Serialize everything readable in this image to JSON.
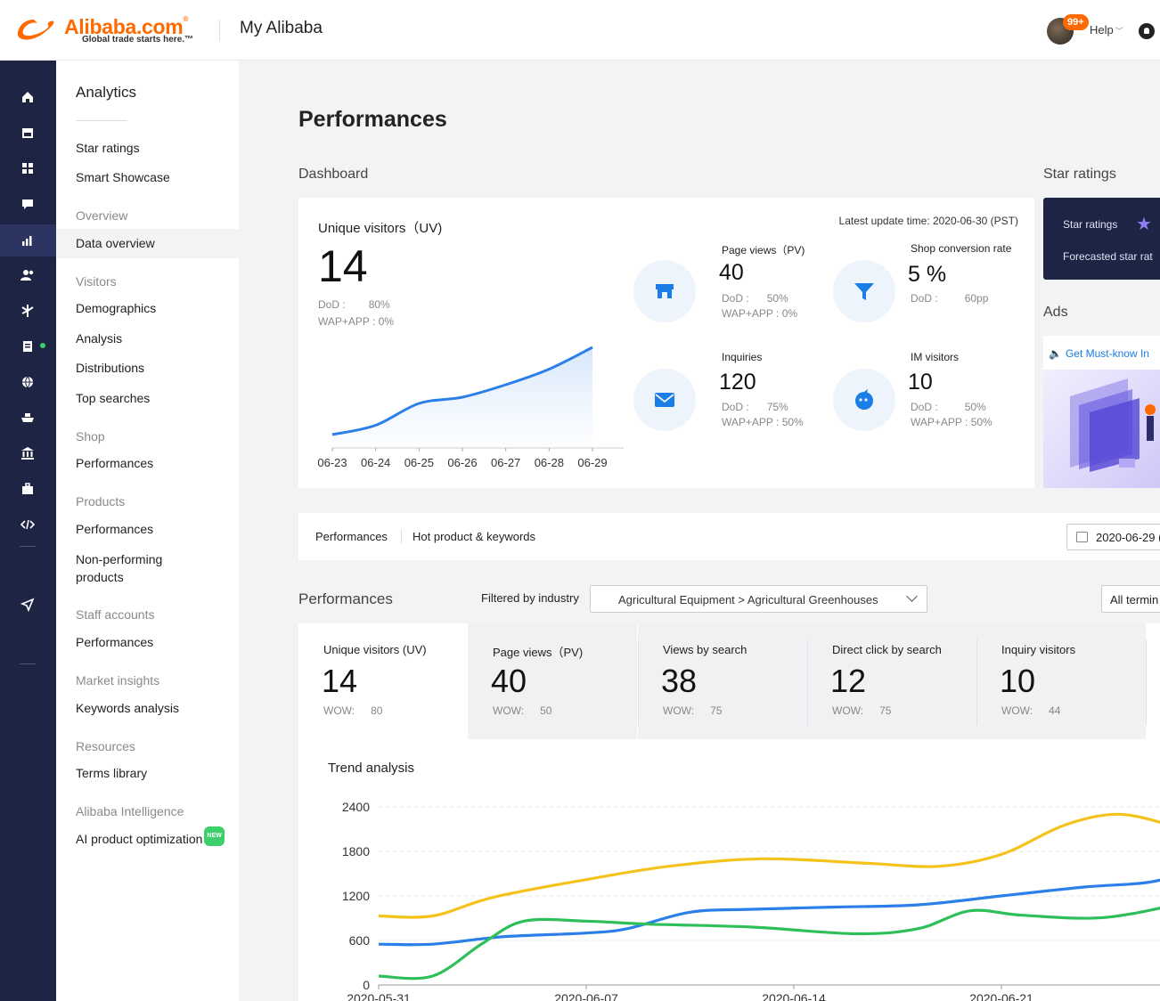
{
  "header": {
    "logo_word": "Alibaba.com",
    "logo_reg": "®",
    "logo_tagline": "Global trade starts here.™",
    "title": "My Alibaba",
    "badge": "99+",
    "help_label": "Help"
  },
  "rail": {
    "icons": [
      "home-icon",
      "store-icon",
      "apps-icon",
      "message-icon",
      "analytics-icon",
      "customers-icon",
      "fork-icon",
      "orders-icon",
      "globe-icon",
      "ship-icon",
      "bank-icon",
      "briefcase-icon",
      "code-icon",
      "send-icon"
    ]
  },
  "menu": {
    "title": "Analytics",
    "items": {
      "star_ratings": "Star ratings",
      "smart_showcase": "Smart Showcase",
      "overview": "Overview",
      "data_overview": "Data overview",
      "visitors": "Visitors",
      "demographics": "Demographics",
      "analysis": "Analysis",
      "distributions": "Distributions",
      "top_searches": "Top searches",
      "shop": "Shop",
      "shop_performances": "Performances",
      "products": "Products",
      "products_performances": "Performances",
      "non_performing_1": "Non-performing",
      "non_performing_2": "products",
      "staff_accounts": "Staff accounts",
      "staff_performances": "Performances",
      "market_insights": "Market insights",
      "keywords_analysis": "Keywords analysis",
      "resources": "Resources",
      "terms_library": "Terms library",
      "alibaba_intelligence": "Alibaba Intelligence",
      "ai_product_optimization": "AI product optimization",
      "new_tag": "NEW"
    }
  },
  "main": {
    "page_title": "Performances",
    "dashboard_label": "Dashboard",
    "star_ratings_label": "Star ratings",
    "ads_label": "Ads"
  },
  "dashboard": {
    "uv_label": "Unique visitors（UV)",
    "uv_value": "14",
    "uv_dod_label": "DoD :",
    "uv_dod_value": "80%",
    "uv_wap": "WAP+APP : 0%",
    "update_time": "Latest update time: 2020-06-30 (PST)",
    "metrics": {
      "pv": {
        "label": "Page views（PV)",
        "value": "40",
        "dod_label": "DoD :",
        "dod_value": "50%",
        "wap": "WAP+APP : 0%"
      },
      "conv": {
        "label": "Shop conversion rate",
        "value": "5 %",
        "dod_label": "DoD :",
        "dod_value": "60pp"
      },
      "inq": {
        "label": "Inquiries",
        "value": "120",
        "dod_label": "DoD :",
        "dod_value": "75%",
        "wap": "WAP+APP : 50%"
      },
      "im": {
        "label": "IM visitors",
        "value": "10",
        "dod_label": "DoD :",
        "dod_value": "50%",
        "wap": "WAP+APP : 50%"
      }
    }
  },
  "star_card": {
    "line1": "Star ratings",
    "line2": "Forecasted star rat"
  },
  "ads": {
    "link": "Get Must-know In"
  },
  "tabs": {
    "performances": "Performances",
    "hot": "Hot product & keywords",
    "date": "2020-06-29 ("
  },
  "performances": {
    "label": "Performances",
    "filter_label": "Filtered by industry",
    "filter_value": "Agricultural Equipment > Agricultural Greenhouses",
    "terminal": "All termin",
    "trend_title": "Trend analysis",
    "kpis": [
      {
        "label": "Unique visitors (UV)",
        "value": "14",
        "wow_label": "WOW:",
        "wow_value": "80"
      },
      {
        "label": "Page views（PV)",
        "value": "40",
        "wow_label": "WOW:",
        "wow_value": "50"
      },
      {
        "label": "Views by search",
        "value": "38",
        "wow_label": "WOW:",
        "wow_value": "75"
      },
      {
        "label": "Direct click by search",
        "value": "12",
        "wow_label": "WOW:",
        "wow_value": "75"
      },
      {
        "label": "Inquiry visitors",
        "value": "10",
        "wow_label": "WOW:",
        "wow_value": "44"
      }
    ]
  },
  "chart_data": [
    {
      "type": "area",
      "x": [
        "06-23",
        "06-24",
        "06-25",
        "06-26",
        "06-27",
        "06-28",
        "06-29"
      ],
      "values": [
        2,
        3.5,
        7,
        8,
        10,
        12.5,
        16
      ],
      "ylim": [
        0,
        20
      ],
      "grid": false,
      "color": "#2b7fe8"
    },
    {
      "type": "line",
      "x": [
        "2020-05-31",
        "2020-06-07",
        "2020-06-14",
        "2020-06-21"
      ],
      "y_ticks": [
        0,
        600,
        1200,
        1800,
        2400
      ],
      "ylim": [
        0,
        2400
      ],
      "grid": true,
      "series": [
        {
          "color": "#f5c21b",
          "points": [
            [
              0,
              930
            ],
            [
              0.26,
              930
            ],
            [
              0.55,
              1180
            ],
            [
              1.0,
              1420
            ],
            [
              1.4,
              1600
            ],
            [
              1.85,
              1700
            ],
            [
              2.35,
              1640
            ],
            [
              2.7,
              1600
            ],
            [
              3.0,
              1760
            ],
            [
              3.3,
              2150
            ],
            [
              3.55,
              2300
            ],
            [
              3.78,
              2180
            ],
            [
              3.92,
              2020
            ]
          ]
        },
        {
          "color": "#2b7fe8",
          "points": [
            [
              0,
              550
            ],
            [
              0.26,
              550
            ],
            [
              0.6,
              650
            ],
            [
              1.0,
              700
            ],
            [
              1.2,
              760
            ],
            [
              1.5,
              980
            ],
            [
              1.8,
              1020
            ],
            [
              2.2,
              1050
            ],
            [
              2.6,
              1080
            ],
            [
              3.0,
              1200
            ],
            [
              3.4,
              1320
            ],
            [
              3.7,
              1380
            ],
            [
              3.92,
              1520
            ]
          ]
        },
        {
          "color": "#2fbf5a",
          "points": [
            [
              0,
              120
            ],
            [
              0.26,
              120
            ],
            [
              0.5,
              560
            ],
            [
              0.7,
              860
            ],
            [
              1.0,
              860
            ],
            [
              1.3,
              820
            ],
            [
              1.8,
              780
            ],
            [
              2.3,
              690
            ],
            [
              2.6,
              760
            ],
            [
              2.85,
              1000
            ],
            [
              3.1,
              940
            ],
            [
              3.5,
              910
            ],
            [
              3.92,
              1130
            ]
          ]
        }
      ]
    }
  ]
}
